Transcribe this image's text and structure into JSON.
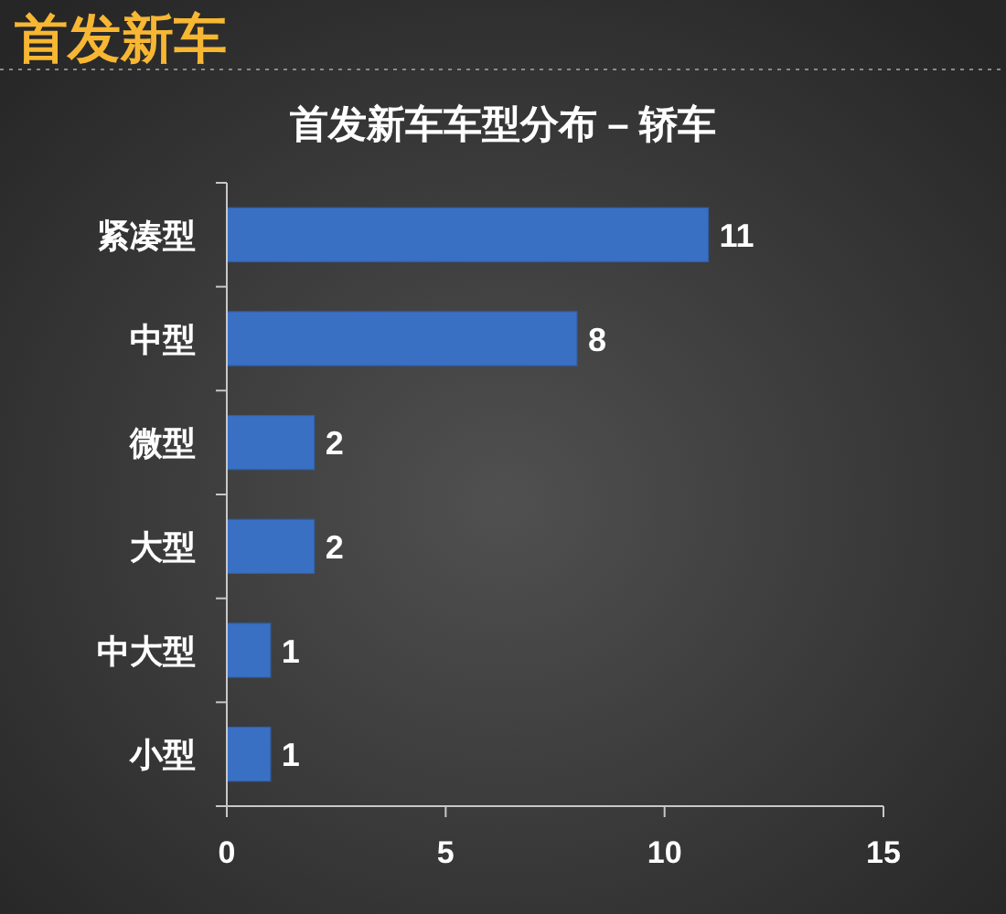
{
  "chart_data": {
    "type": "bar",
    "title": "首发新车",
    "subtitle": "首发新车车型分布 – 轿车",
    "categories": [
      "紧凑型",
      "中型",
      "微型",
      "大型",
      "中大型",
      "小型"
    ],
    "values": [
      11,
      8,
      2,
      2,
      1,
      1
    ],
    "color": "#3a70c4",
    "orientation": "horizontal",
    "xlim": [
      0,
      15
    ],
    "xticks": [
      0,
      5,
      10,
      15
    ],
    "data_labels": true
  }
}
